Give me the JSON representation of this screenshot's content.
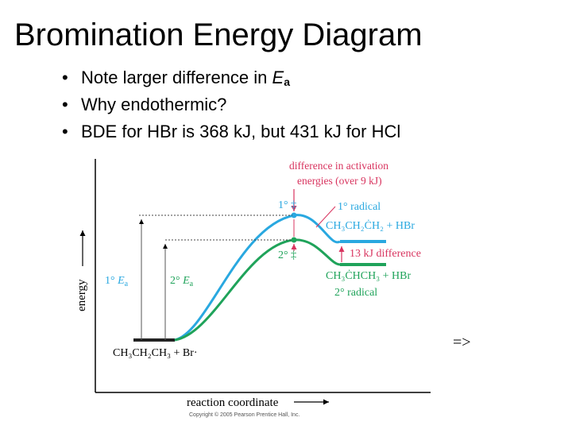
{
  "slide": {
    "title": "Bromination Energy Diagram",
    "bullets": [
      {
        "prefix": "Note larger difference in ",
        "italic": "E",
        "sub": "a",
        "suffix": ""
      },
      {
        "prefix": "Why endothermic?",
        "italic": "",
        "sub": "",
        "suffix": ""
      },
      {
        "prefix": "BDE for HBr is 368 kJ, but 431 kJ for HCl",
        "italic": "",
        "sub": "",
        "suffix": ""
      }
    ],
    "next_label": "=>"
  },
  "diagram": {
    "colors": {
      "primary_curve": "#29a8e0",
      "secondary_curve": "#1fa35a",
      "annotation": "#d8345f",
      "axis": "#000000"
    },
    "labels": {
      "diff_activation_line1": "difference in activation",
      "diff_activation_line2": "energies (over 9 kJ)",
      "ts_primary": "1° ‡",
      "ts_secondary": "2° ‡",
      "primary_radical": "1° radical",
      "primary_product": "CH₃CH₂ĊH₂ + HBr",
      "kj_difference": "13 kJ difference",
      "secondary_product": "CH₃ĊHCH₃ + HBr",
      "secondary_radical": "2° radical",
      "ea_primary_prefix": "1° ",
      "ea_secondary_prefix": "2° ",
      "ea_symbol": "E",
      "ea_sub": "a",
      "reactants": "CH₃CH₂CH₃ + Br·",
      "y_axis": "energy",
      "x_axis": "reaction coordinate",
      "copyright": "Copyright © 2005 Pearson Prentice Hall, Inc."
    }
  }
}
